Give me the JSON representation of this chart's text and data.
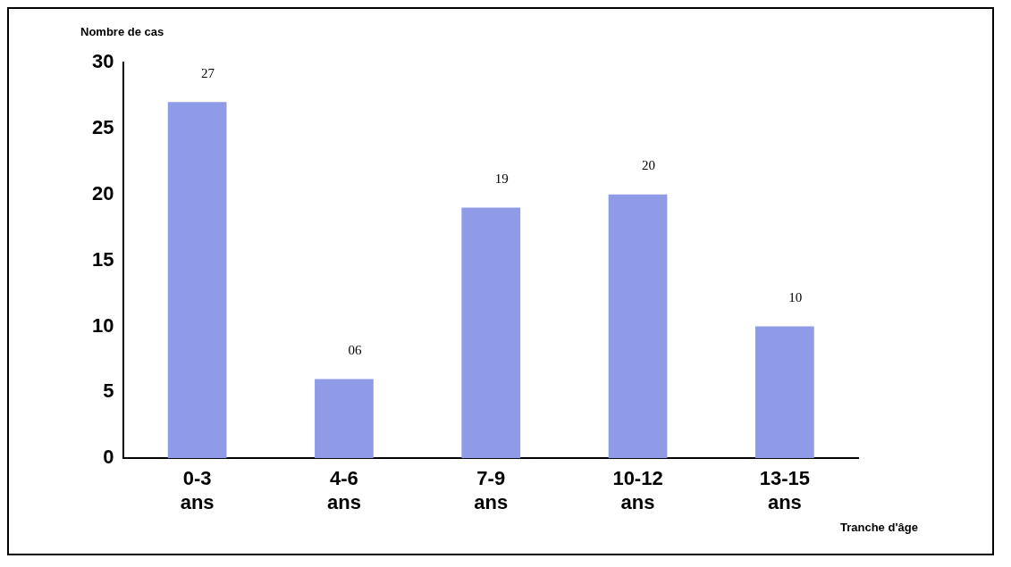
{
  "chart_data": {
    "type": "bar",
    "ylabel": "Nombre de cas",
    "xlabel": "Tranche d'âge",
    "categories": [
      "0-3 ans",
      "4-6 ans",
      "7-9 ans",
      "10-12 ans",
      "13-15 ans"
    ],
    "values": [
      27,
      6,
      19,
      20,
      10
    ],
    "value_labels": [
      "27",
      "06",
      "19",
      "20",
      "10"
    ],
    "color": "#8f9be6",
    "ylim": [
      0,
      30
    ],
    "yticks": [
      0,
      5,
      10,
      15,
      20,
      25,
      30
    ],
    "grid": false,
    "legend": false
  }
}
